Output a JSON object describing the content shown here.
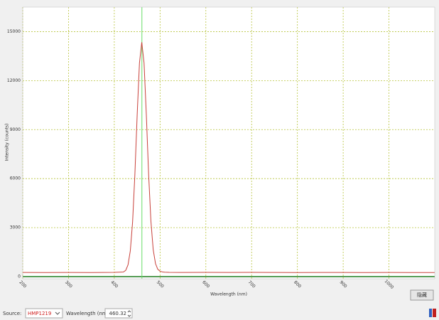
{
  "chart_data": {
    "type": "line",
    "x_label": "Wavelength (nm)",
    "y_label": "Intensity (counts)",
    "x": [
      200,
      250,
      300,
      350,
      400,
      420,
      425,
      430,
      435,
      440,
      445,
      450,
      455,
      460,
      465,
      470,
      475,
      480,
      485,
      490,
      495,
      500,
      505,
      510,
      520,
      550,
      600,
      650,
      700,
      750,
      800,
      850,
      900,
      950,
      1000,
      1050,
      1100
    ],
    "series": [
      {
        "color": "#c8403a",
        "values": [
          255,
          250,
          258,
          252,
          260,
          284,
          387,
          720,
          1580,
          3355,
          6270,
          9910,
          13080,
          14350,
          13080,
          9910,
          6270,
          3400,
          1650,
          800,
          450,
          330,
          290,
          272,
          262,
          258,
          262,
          255,
          260,
          256,
          252,
          258,
          255,
          250,
          254,
          250,
          252
        ]
      }
    ],
    "xlim": [
      200,
      1100
    ],
    "ylim": [
      -130,
      16500
    ],
    "xticks": [
      200,
      300,
      400,
      500,
      600,
      700,
      800,
      900,
      1000
    ],
    "yticks": [
      0,
      3000,
      6000,
      9000,
      12000,
      15000
    ],
    "grid": true
  },
  "controls": {
    "source_label": "Source:",
    "source_value": "HMP1219",
    "wavelength_label": "Wavelength (nm):",
    "wavelength_value": 460.32,
    "hide_button": "隐藏"
  }
}
